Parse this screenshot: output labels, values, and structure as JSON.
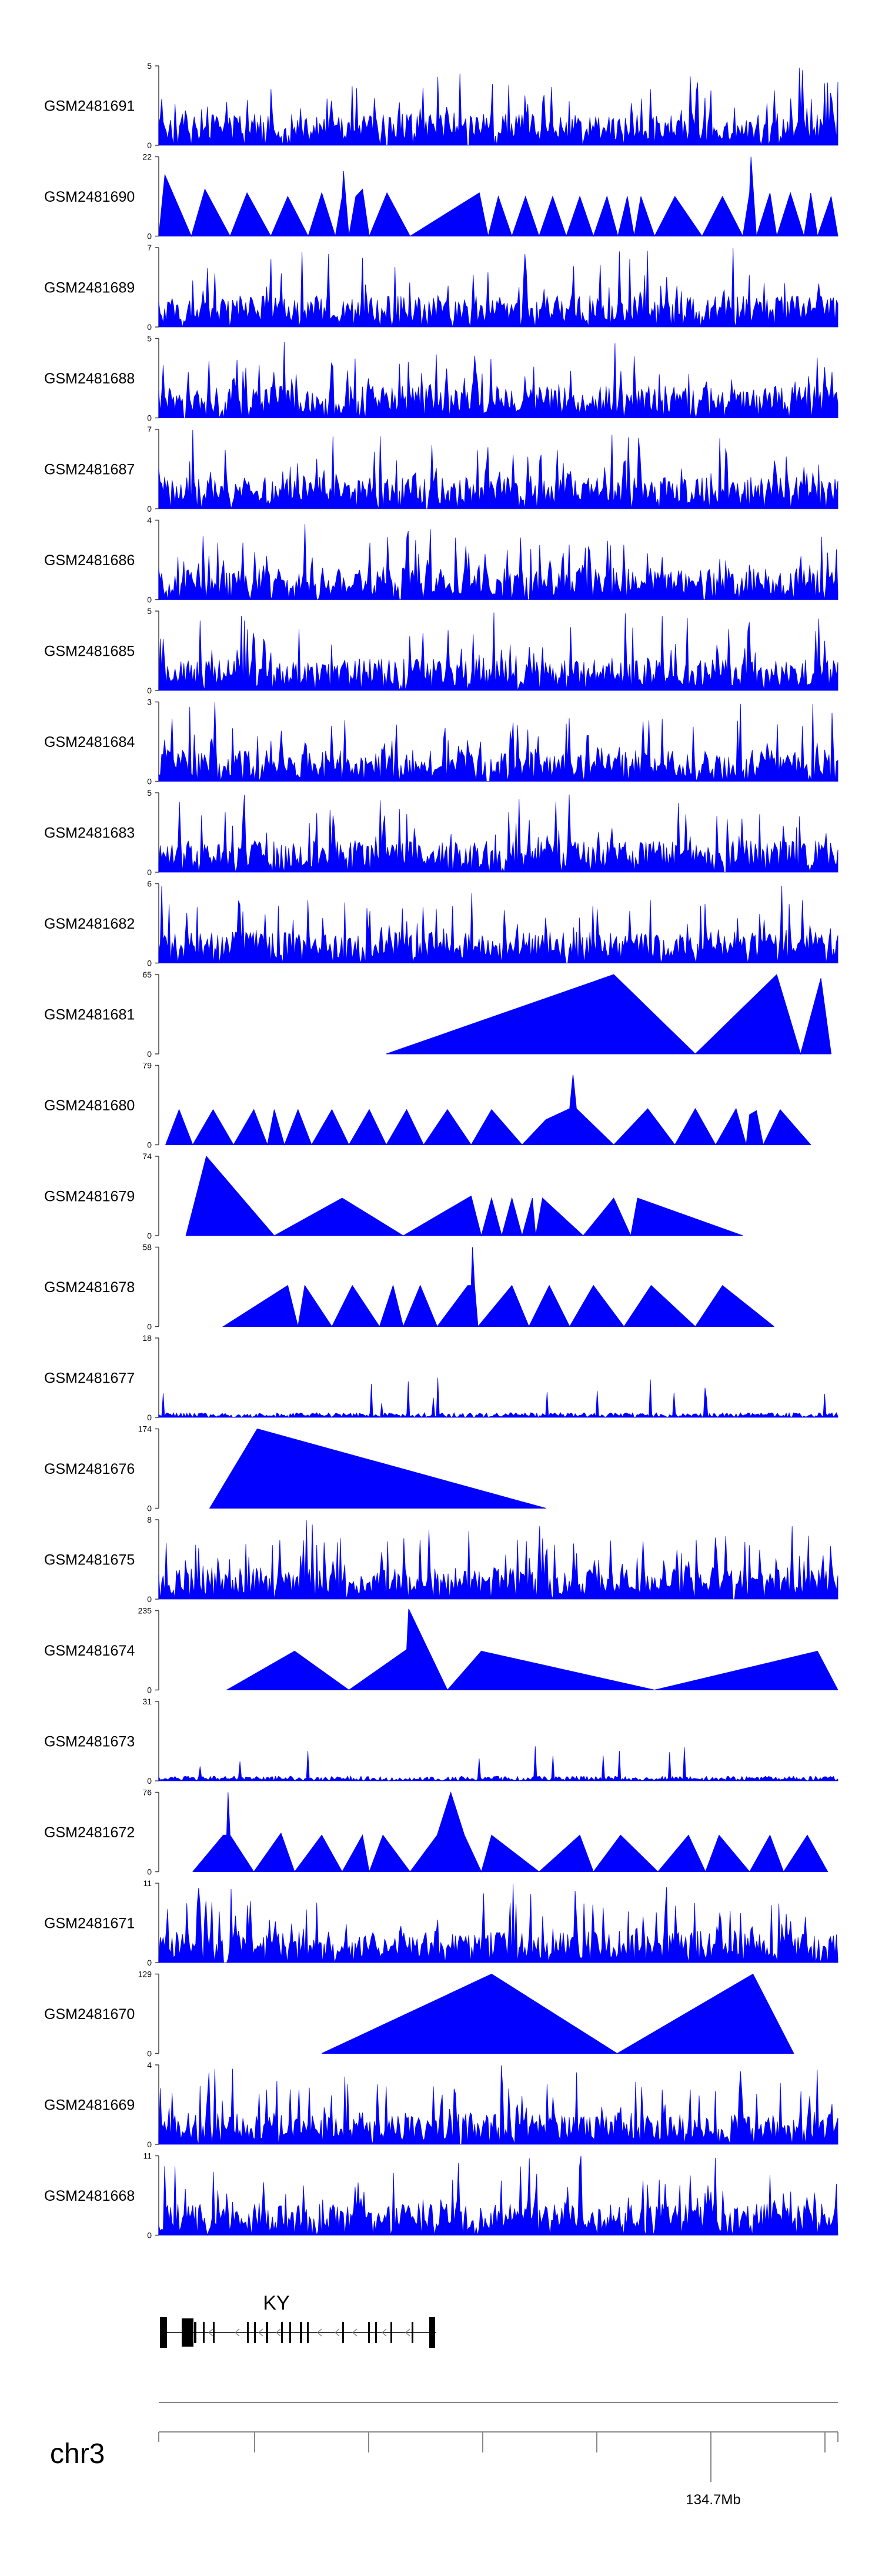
{
  "chart_data": {
    "type": "area",
    "title": "",
    "style": {
      "fill_color": "#0000ff",
      "axis_color": "#444444"
    },
    "x_axis": {
      "chromosome": "chr3",
      "tick_count": 6,
      "labeled_tick_label": "134.7Mb"
    },
    "gene": {
      "name": "KY",
      "strand": "-",
      "exon_count": 18
    },
    "tracks": [
      {
        "name": "GSM2481691",
        "ymax": 5,
        "pattern": "dense",
        "peaks": []
      },
      {
        "name": "GSM2481690",
        "ymax": 22,
        "pattern": "sparse",
        "peaks": [
          [
            0.0,
            0
          ],
          [
            0.009,
            17
          ],
          [
            0.048,
            0
          ],
          [
            0.068,
            13
          ],
          [
            0.105,
            0
          ],
          [
            0.13,
            12
          ],
          [
            0.165,
            0
          ],
          [
            0.19,
            11
          ],
          [
            0.22,
            0
          ],
          [
            0.24,
            12
          ],
          [
            0.26,
            0
          ],
          [
            0.27,
            11
          ],
          [
            0.272,
            18
          ],
          [
            0.28,
            0
          ],
          [
            0.29,
            11
          ],
          [
            0.3,
            13
          ],
          [
            0.31,
            0
          ],
          [
            0.336,
            12
          ],
          [
            0.37,
            0
          ],
          [
            0.472,
            12
          ],
          [
            0.485,
            0
          ],
          [
            0.5,
            11
          ],
          [
            0.52,
            0
          ],
          [
            0.54,
            11
          ],
          [
            0.56,
            0
          ],
          [
            0.58,
            11
          ],
          [
            0.6,
            0
          ],
          [
            0.62,
            11
          ],
          [
            0.64,
            0
          ],
          [
            0.66,
            11
          ],
          [
            0.676,
            0
          ],
          [
            0.69,
            11
          ],
          [
            0.7,
            0
          ],
          [
            0.71,
            11
          ],
          [
            0.73,
            0
          ],
          [
            0.76,
            11
          ],
          [
            0.8,
            0
          ],
          [
            0.83,
            11
          ],
          [
            0.86,
            0
          ],
          [
            0.87,
            12
          ],
          [
            0.872,
            22
          ],
          [
            0.88,
            0
          ],
          [
            0.9,
            12
          ],
          [
            0.91,
            0
          ],
          [
            0.93,
            12
          ],
          [
            0.95,
            0
          ],
          [
            0.96,
            12
          ],
          [
            0.97,
            0
          ],
          [
            0.99,
            11
          ],
          [
            1.0,
            0
          ]
        ]
      },
      {
        "name": "GSM2481689",
        "ymax": 7,
        "pattern": "dense",
        "peaks": []
      },
      {
        "name": "GSM2481688",
        "ymax": 5,
        "pattern": "dense",
        "peaks": []
      },
      {
        "name": "GSM2481687",
        "ymax": 7,
        "pattern": "dense",
        "peaks": []
      },
      {
        "name": "GSM2481686",
        "ymax": 4,
        "pattern": "dense",
        "peaks": []
      },
      {
        "name": "GSM2481685",
        "ymax": 5,
        "pattern": "dense",
        "peaks": []
      },
      {
        "name": "GSM2481684",
        "ymax": 3,
        "pattern": "dense",
        "peaks": []
      },
      {
        "name": "GSM2481683",
        "ymax": 5,
        "pattern": "dense",
        "peaks": []
      },
      {
        "name": "GSM2481682",
        "ymax": 6,
        "pattern": "dense",
        "peaks": []
      },
      {
        "name": "GSM2481681",
        "ymax": 65,
        "pattern": "sparse",
        "peaks": [
          [
            0.335,
            0
          ],
          [
            0.67,
            65
          ],
          [
            0.79,
            0
          ],
          [
            0.91,
            65
          ],
          [
            0.945,
            0
          ],
          [
            0.975,
            62
          ],
          [
            0.99,
            0
          ]
        ]
      },
      {
        "name": "GSM2481680",
        "ymax": 79,
        "pattern": "sparse",
        "peaks": [
          [
            0.01,
            0
          ],
          [
            0.03,
            35
          ],
          [
            0.05,
            0
          ],
          [
            0.08,
            35
          ],
          [
            0.11,
            0
          ],
          [
            0.14,
            35
          ],
          [
            0.16,
            0
          ],
          [
            0.17,
            35
          ],
          [
            0.185,
            0
          ],
          [
            0.205,
            35
          ],
          [
            0.225,
            0
          ],
          [
            0.255,
            35
          ],
          [
            0.28,
            0
          ],
          [
            0.31,
            35
          ],
          [
            0.335,
            0
          ],
          [
            0.365,
            35
          ],
          [
            0.39,
            0
          ],
          [
            0.425,
            35
          ],
          [
            0.46,
            0
          ],
          [
            0.49,
            35
          ],
          [
            0.535,
            0
          ],
          [
            0.57,
            25
          ],
          [
            0.605,
            36
          ],
          [
            0.61,
            70
          ],
          [
            0.615,
            36
          ],
          [
            0.67,
            0
          ],
          [
            0.72,
            36
          ],
          [
            0.76,
            0
          ],
          [
            0.79,
            36
          ],
          [
            0.82,
            0
          ],
          [
            0.85,
            36
          ],
          [
            0.865,
            0
          ],
          [
            0.87,
            30
          ],
          [
            0.88,
            34
          ],
          [
            0.89,
            0
          ],
          [
            0.915,
            35
          ],
          [
            0.96,
            0
          ]
        ]
      },
      {
        "name": "GSM2481679",
        "ymax": 74,
        "pattern": "sparse",
        "peaks": [
          [
            0.04,
            0
          ],
          [
            0.07,
            74
          ],
          [
            0.17,
            0
          ],
          [
            0.27,
            35
          ],
          [
            0.36,
            0
          ],
          [
            0.46,
            37
          ],
          [
            0.475,
            0
          ],
          [
            0.49,
            35
          ],
          [
            0.505,
            0
          ],
          [
            0.52,
            35
          ],
          [
            0.535,
            0
          ],
          [
            0.55,
            35
          ],
          [
            0.555,
            0
          ],
          [
            0.565,
            35
          ],
          [
            0.625,
            0
          ],
          [
            0.67,
            35
          ],
          [
            0.695,
            0
          ],
          [
            0.705,
            35
          ],
          [
            0.86,
            0
          ]
        ]
      },
      {
        "name": "GSM2481678",
        "ymax": 58,
        "pattern": "sparse",
        "peaks": [
          [
            0.095,
            0
          ],
          [
            0.19,
            30
          ],
          [
            0.205,
            0
          ],
          [
            0.215,
            30
          ],
          [
            0.255,
            0
          ],
          [
            0.285,
            30
          ],
          [
            0.325,
            0
          ],
          [
            0.345,
            30
          ],
          [
            0.36,
            0
          ],
          [
            0.385,
            30
          ],
          [
            0.41,
            0
          ],
          [
            0.455,
            30
          ],
          [
            0.46,
            30
          ],
          [
            0.462,
            58
          ],
          [
            0.465,
            30
          ],
          [
            0.47,
            0
          ],
          [
            0.52,
            30
          ],
          [
            0.545,
            0
          ],
          [
            0.575,
            30
          ],
          [
            0.605,
            0
          ],
          [
            0.64,
            30
          ],
          [
            0.685,
            0
          ],
          [
            0.725,
            30
          ],
          [
            0.79,
            0
          ],
          [
            0.83,
            30
          ],
          [
            0.906,
            0
          ]
        ]
      },
      {
        "name": "GSM2481677",
        "ymax": 18,
        "pattern": "noisy",
        "peaks": []
      },
      {
        "name": "GSM2481676",
        "ymax": 174,
        "pattern": "sparse",
        "peaks": [
          [
            0.075,
            0
          ],
          [
            0.145,
            174
          ],
          [
            0.57,
            0
          ]
        ]
      },
      {
        "name": "GSM2481675",
        "ymax": 8,
        "pattern": "dense",
        "peaks": []
      },
      {
        "name": "GSM2481674",
        "ymax": 235,
        "pattern": "sparse",
        "peaks": [
          [
            0.1,
            0
          ],
          [
            0.2,
            115
          ],
          [
            0.28,
            0
          ],
          [
            0.365,
            120
          ],
          [
            0.368,
            240
          ],
          [
            0.425,
            0
          ],
          [
            0.475,
            115
          ],
          [
            0.73,
            0
          ],
          [
            0.97,
            115
          ],
          [
            1.0,
            0
          ]
        ]
      },
      {
        "name": "GSM2481673",
        "ymax": 31,
        "pattern": "noisy",
        "peaks": []
      },
      {
        "name": "GSM2481672",
        "ymax": 76,
        "pattern": "sparse",
        "peaks": [
          [
            0.05,
            0
          ],
          [
            0.095,
            35
          ],
          [
            0.1,
            35
          ],
          [
            0.102,
            76
          ],
          [
            0.105,
            35
          ],
          [
            0.14,
            0
          ],
          [
            0.18,
            37
          ],
          [
            0.2,
            0
          ],
          [
            0.24,
            35
          ],
          [
            0.27,
            0
          ],
          [
            0.3,
            35
          ],
          [
            0.31,
            0
          ],
          [
            0.33,
            35
          ],
          [
            0.37,
            0
          ],
          [
            0.41,
            35
          ],
          [
            0.43,
            76
          ],
          [
            0.45,
            35
          ],
          [
            0.475,
            0
          ],
          [
            0.49,
            35
          ],
          [
            0.56,
            0
          ],
          [
            0.62,
            35
          ],
          [
            0.64,
            0
          ],
          [
            0.68,
            35
          ],
          [
            0.735,
            0
          ],
          [
            0.78,
            35
          ],
          [
            0.805,
            0
          ],
          [
            0.825,
            35
          ],
          [
            0.87,
            0
          ],
          [
            0.9,
            35
          ],
          [
            0.92,
            0
          ],
          [
            0.955,
            35
          ],
          [
            0.985,
            0
          ]
        ]
      },
      {
        "name": "GSM2481671",
        "ymax": 11,
        "pattern": "dense",
        "peaks": []
      },
      {
        "name": "GSM2481670",
        "ymax": 129,
        "pattern": "sparse",
        "peaks": [
          [
            0.24,
            0
          ],
          [
            0.49,
            129
          ],
          [
            0.675,
            0
          ],
          [
            0.875,
            129
          ],
          [
            0.935,
            0
          ]
        ]
      },
      {
        "name": "GSM2481669",
        "ymax": 4,
        "pattern": "dense",
        "peaks": []
      },
      {
        "name": "GSM2481668",
        "ymax": 11,
        "pattern": "dense",
        "peaks": []
      }
    ]
  }
}
